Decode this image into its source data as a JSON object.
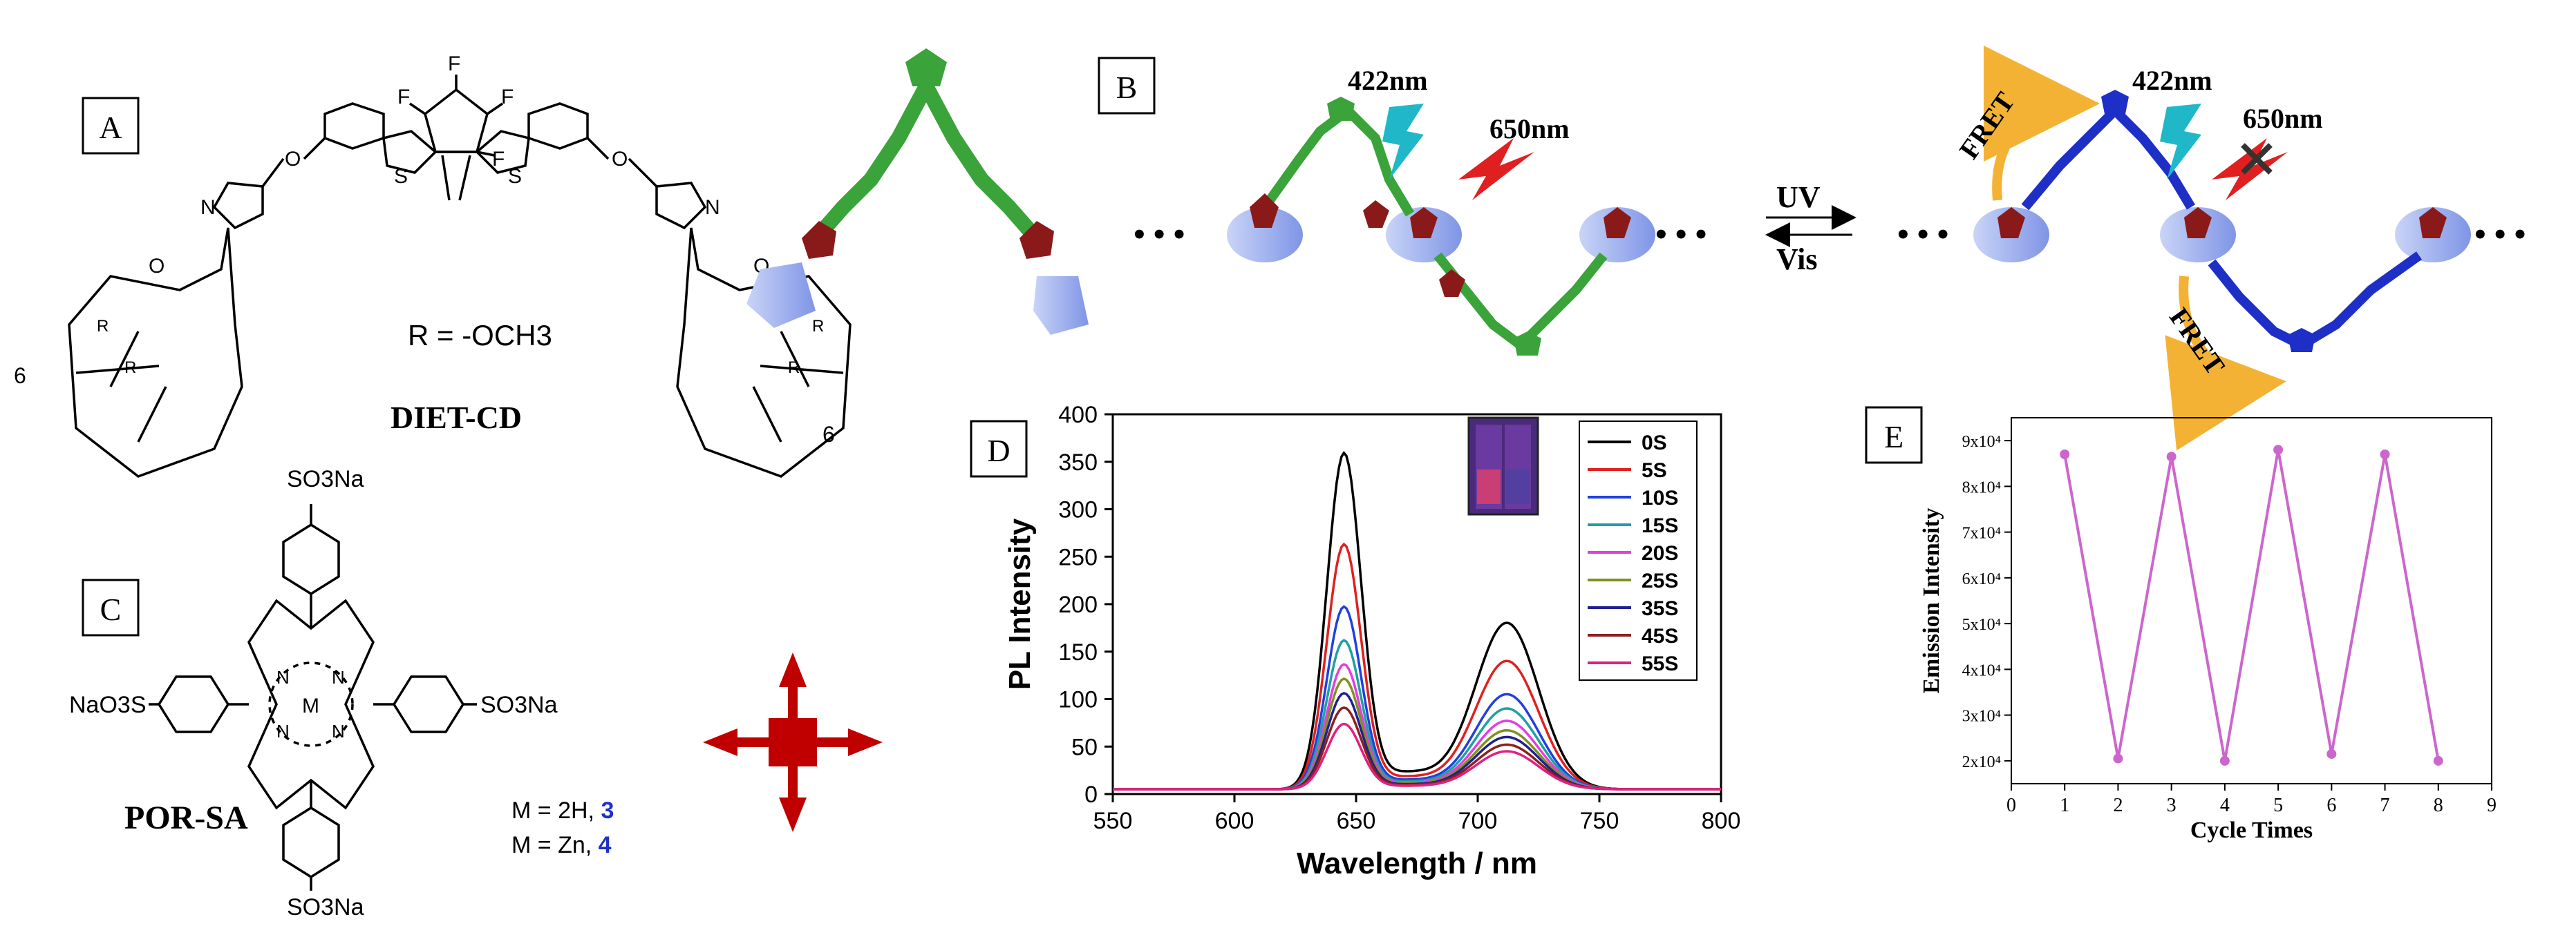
{
  "panels": {
    "A": {
      "label": "A",
      "compound_name": "DIET-CD",
      "r_definition": "R = -OCH3",
      "r_symbol": "R",
      "subscript_6": "6",
      "atoms": {
        "O": "O",
        "N": "N",
        "S": "S",
        "F": "F"
      }
    },
    "B": {
      "label": "B",
      "uv": "UV",
      "vis": "Vis",
      "wl_422": "422nm",
      "wl_650": "650nm",
      "fret": "FRET",
      "ellipsis": "• • •"
    },
    "C": {
      "label": "C",
      "compound_name": "POR-SA",
      "substituent": "SO3Na",
      "left_substituent": "NaO3S",
      "metal_line_1": "M = 2H, ",
      "metal_line_1_num": "3",
      "metal_line_2": "M = Zn, ",
      "metal_line_2_num": "4",
      "center_atom": "M",
      "n_atom": "N"
    },
    "D": {
      "label": "D"
    },
    "E": {
      "label": "E"
    }
  },
  "colors": {
    "accent_red": "#c00000",
    "green": "#3aa33a",
    "blue": "#1e2fc8",
    "cd_blue": "#9fb2f0",
    "dark_red": "#8a1a1a",
    "purple": "#cc66cc",
    "orange": "#f4b234"
  },
  "chart_data": [
    {
      "id": "D",
      "type": "line",
      "xlabel": "Wavelength / nm",
      "ylabel": "PL Intensity",
      "xlim": [
        550,
        800
      ],
      "ylim": [
        0,
        400
      ],
      "xticks": [
        550,
        600,
        650,
        700,
        750,
        800
      ],
      "yticks": [
        0,
        50,
        100,
        150,
        200,
        250,
        300,
        350,
        400
      ],
      "peak1_center": 645,
      "peak2_center": 712,
      "baseline": 5,
      "series": [
        {
          "name": "0S",
          "color": "#000000",
          "peak1": 350,
          "peak2": 175
        },
        {
          "name": "5S",
          "color": "#e02020",
          "peak1": 255,
          "peak2": 135
        },
        {
          "name": "10S",
          "color": "#2040e0",
          "peak1": 190,
          "peak2": 100
        },
        {
          "name": "15S",
          "color": "#20a0a0",
          "peak1": 155,
          "peak2": 85
        },
        {
          "name": "20S",
          "color": "#e040e0",
          "peak1": 130,
          "peak2": 72
        },
        {
          "name": "25S",
          "color": "#809020",
          "peak1": 115,
          "peak2": 62
        },
        {
          "name": "35S",
          "color": "#202090",
          "peak1": 100,
          "peak2": 55
        },
        {
          "name": "45S",
          "color": "#8a2020",
          "peak1": 85,
          "peak2": 47
        },
        {
          "name": "55S",
          "color": "#e02080",
          "peak1": 68,
          "peak2": 40
        }
      ]
    },
    {
      "id": "E",
      "type": "line",
      "xlabel": "Cycle Times",
      "ylabel": "Emission Intensity",
      "xlim": [
        0,
        9
      ],
      "ylim": [
        15000,
        95000
      ],
      "xticks": [
        0,
        1,
        2,
        3,
        4,
        5,
        6,
        7,
        8,
        9
      ],
      "yticks": [
        20000,
        30000,
        40000,
        50000,
        60000,
        70000,
        80000,
        90000
      ],
      "ytick_labels": [
        "2x10⁴",
        "3x10⁴",
        "4x10⁴",
        "5x10⁴",
        "6x10⁴",
        "7x10⁴",
        "8x10⁴",
        "9x10⁴"
      ],
      "x": [
        1,
        2,
        3,
        4,
        5,
        6,
        7,
        8
      ],
      "y": [
        87000,
        20500,
        86500,
        20000,
        88000,
        21500,
        87000,
        20000
      ],
      "color": "#cc66cc"
    }
  ]
}
